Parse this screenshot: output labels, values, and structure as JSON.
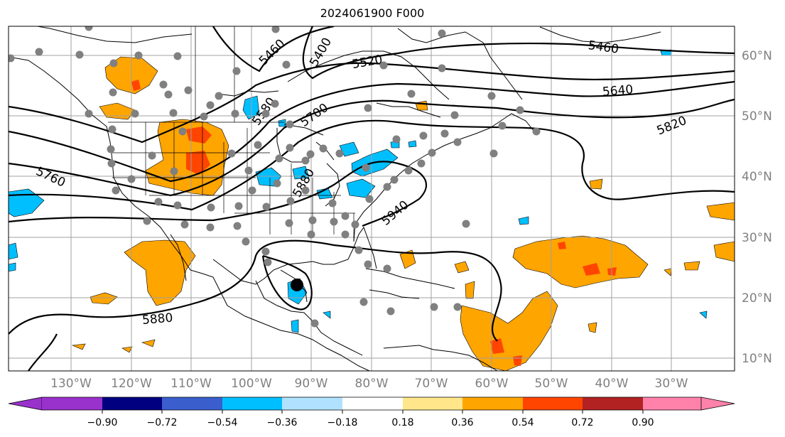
{
  "title": "2024061900 F000",
  "map": {
    "lon_labels": [
      "130°W",
      "120°W",
      "110°W",
      "100°W",
      "90°W",
      "80°W",
      "70°W",
      "60°W",
      "50°W",
      "40°W",
      "30°W"
    ],
    "lat_labels": [
      "60°N",
      "50°N",
      "40°N",
      "30°N",
      "20°N",
      "10°N"
    ],
    "contour_labels": [
      "5460",
      "5400",
      "5520",
      "5460",
      "5640",
      "5700",
      "5580",
      "5820",
      "5820",
      "5760",
      "5880",
      "5940",
      "5880"
    ],
    "colors": {
      "land_outline": "#000000",
      "grid": "#a0a0a0",
      "station_dot": "#808080",
      "storm_marker": "#000000"
    }
  },
  "colorbar": {
    "ticks": [
      "−0.90",
      "−0.72",
      "−0.54",
      "−0.36",
      "−0.18",
      "0.18",
      "0.36",
      "0.54",
      "0.72",
      "0.90"
    ],
    "colors": [
      "#9932cc",
      "#000080",
      "#3a5fcd",
      "#00bfff",
      "#b0e2ff",
      "#ffffff",
      "#ffe68a",
      "#ffa500",
      "#ff4500",
      "#b22222",
      "#ff82ab"
    ]
  }
}
